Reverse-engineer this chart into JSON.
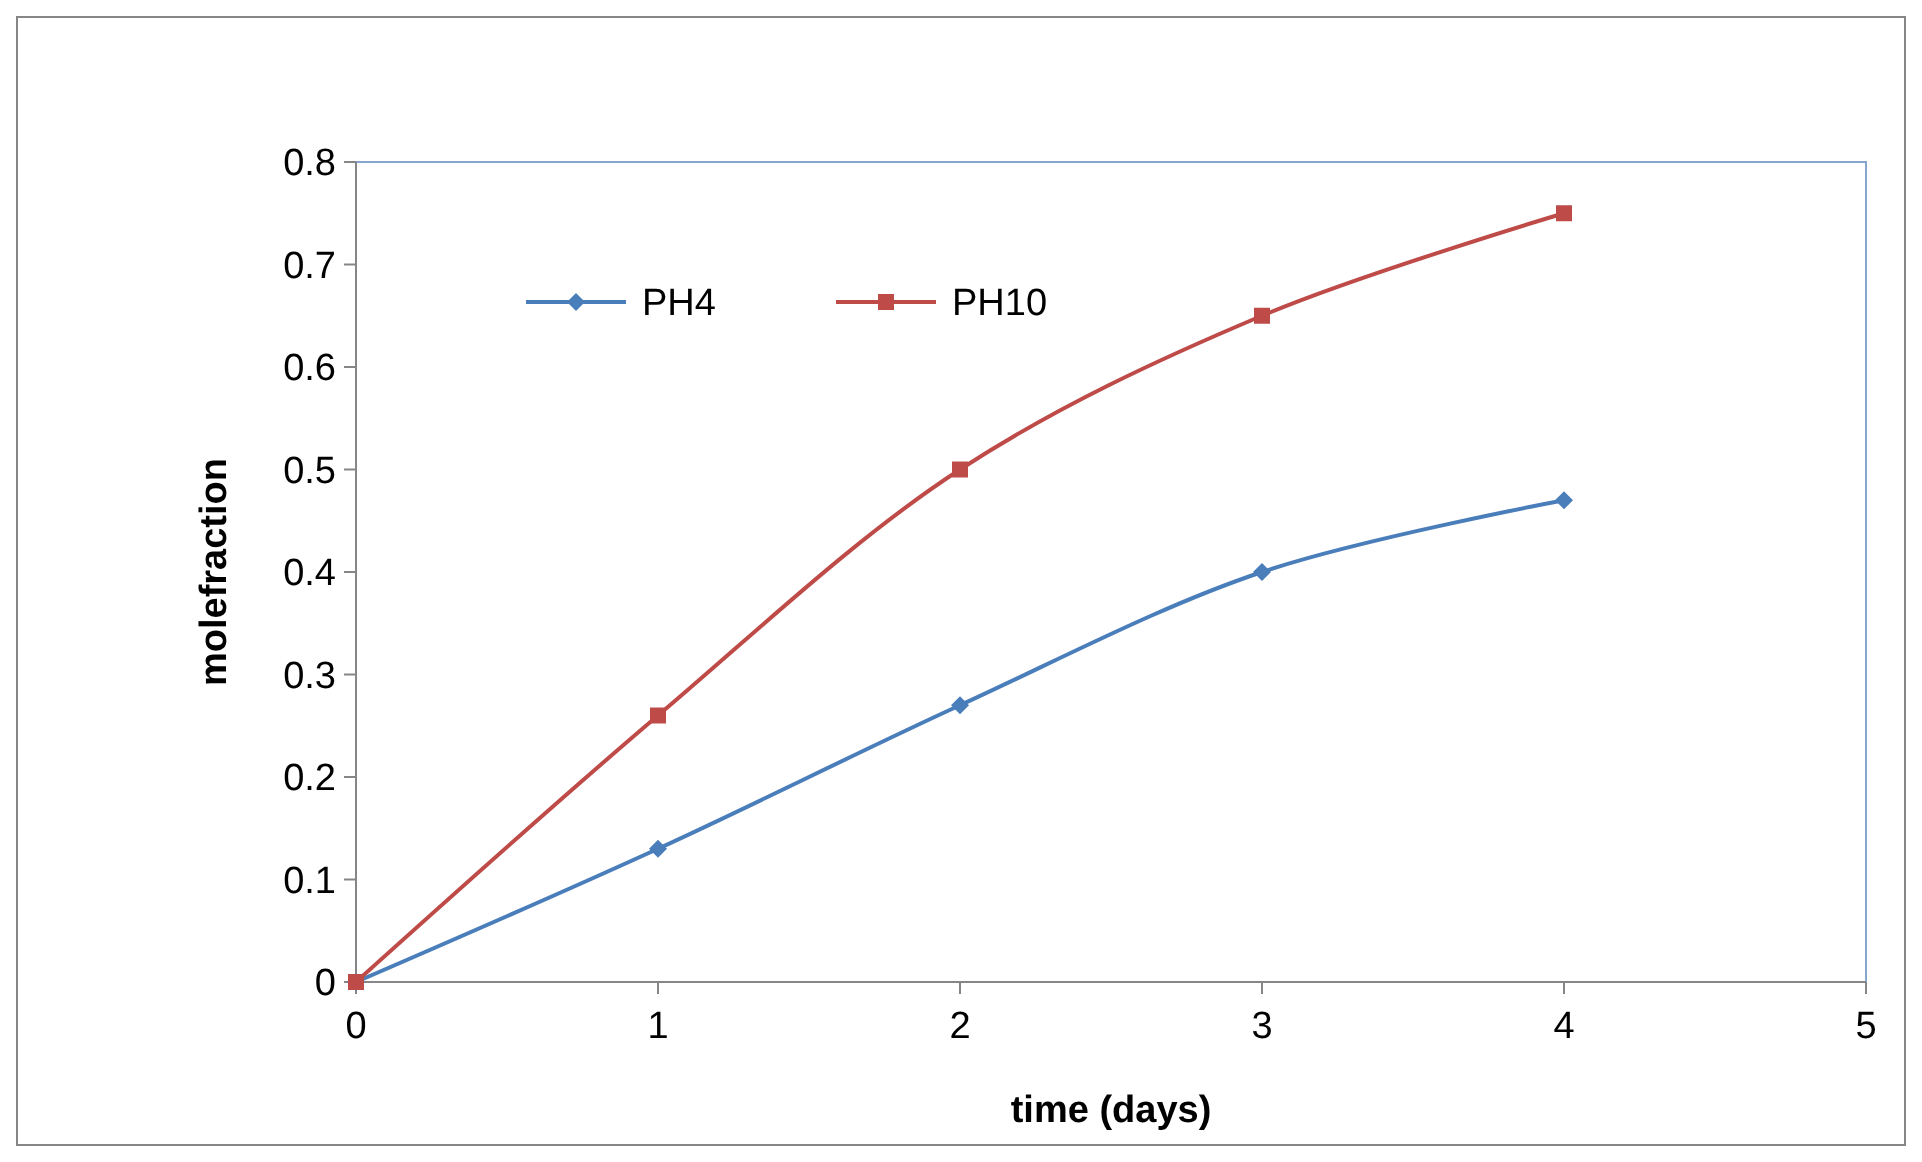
{
  "chart_data": {
    "type": "line",
    "xlabel": "time (days)",
    "ylabel": "molefraction",
    "x": [
      0,
      1,
      2,
      3,
      4
    ],
    "xlim": [
      0,
      5
    ],
    "xticks": [
      0,
      1,
      2,
      3,
      4,
      5
    ],
    "ylim": [
      0,
      0.8
    ],
    "yticks": [
      0,
      0.1,
      0.2,
      0.3,
      0.4,
      0.5,
      0.6,
      0.7,
      0.8
    ],
    "grid": false,
    "legend": "top left",
    "series": [
      {
        "name": "PH4",
        "color": "#4a7ebb",
        "marker": "diamond",
        "values": [
          0,
          0.13,
          0.27,
          0.4,
          0.47
        ]
      },
      {
        "name": "PH10",
        "color": "#be4b48",
        "marker": "square",
        "values": [
          0,
          0.26,
          0.5,
          0.65,
          0.75
        ]
      }
    ]
  }
}
